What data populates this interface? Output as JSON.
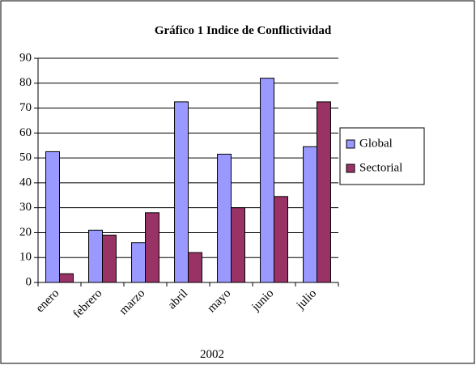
{
  "chart_data": {
    "type": "bar",
    "title": "Gráfico 1 Indice de Conflictividad",
    "x_label": "2002",
    "categories": [
      "enero",
      "febrero",
      "marzo",
      "abril",
      "mayo",
      "junio",
      "julio"
    ],
    "series": [
      {
        "name": "Global",
        "color": "#9999ff",
        "values": [
          52.5,
          21,
          16,
          72.5,
          51.5,
          82,
          54.5
        ]
      },
      {
        "name": "Sectorial",
        "color": "#993366",
        "values": [
          3.5,
          19,
          28,
          12,
          30,
          34.5,
          72.5
        ]
      }
    ],
    "ylim": [
      0,
      90
    ],
    "yticks": [
      0,
      10,
      20,
      30,
      40,
      50,
      60,
      70,
      80,
      90
    ],
    "grid": true,
    "legend": "right"
  }
}
